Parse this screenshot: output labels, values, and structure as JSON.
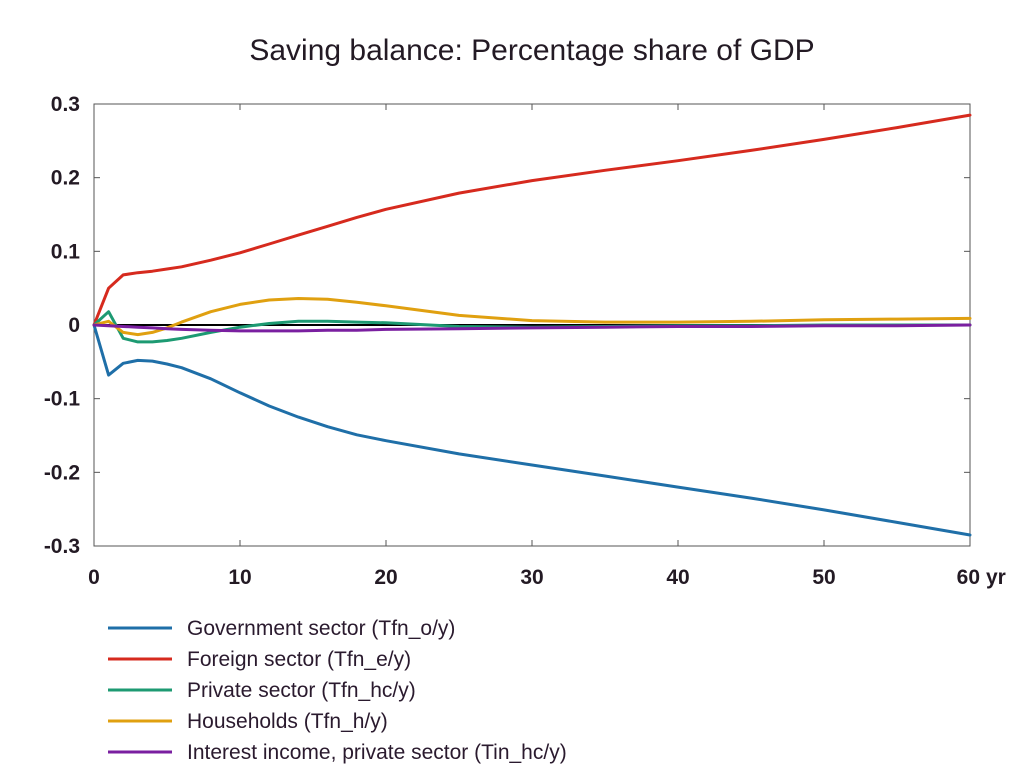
{
  "chart_data": {
    "type": "line",
    "title": "Saving balance: Percentage share of GDP",
    "x_unit_label": "yr",
    "xlim": [
      0,
      60
    ],
    "ylim": [
      -0.3,
      0.3
    ],
    "x_ticks": [
      0,
      10,
      20,
      30,
      40,
      50,
      60
    ],
    "x_tick_labels": [
      "0",
      "10",
      "20",
      "30",
      "40",
      "50",
      "60"
    ],
    "y_ticks": [
      0.3,
      0.2,
      0.1,
      0,
      -0.1,
      -0.2,
      -0.3
    ],
    "y_tick_labels": [
      "0.3",
      "0.2",
      "0.1",
      "0",
      "-0.1",
      "-0.2",
      "-0.3"
    ],
    "grid": false,
    "legend_position": "bottom",
    "series": [
      {
        "name": "Government sector (Tfn_o/y)",
        "color": "#1f6fa8",
        "x": [
          0,
          1,
          2,
          3,
          4,
          5,
          6,
          8,
          10,
          12,
          14,
          16,
          18,
          20,
          25,
          30,
          35,
          40,
          45,
          50,
          55,
          60
        ],
        "y": [
          0,
          -0.068,
          -0.052,
          -0.048,
          -0.049,
          -0.053,
          -0.058,
          -0.073,
          -0.092,
          -0.11,
          -0.125,
          -0.138,
          -0.149,
          -0.157,
          -0.175,
          -0.19,
          -0.205,
          -0.22,
          -0.235,
          -0.251,
          -0.268,
          -0.285
        ]
      },
      {
        "name": "Foreign sector (Tfn_e/y)",
        "color": "#d62a1e",
        "x": [
          0,
          1,
          2,
          3,
          4,
          5,
          6,
          8,
          10,
          12,
          14,
          16,
          18,
          20,
          25,
          30,
          35,
          40,
          45,
          50,
          55,
          60
        ],
        "y": [
          0,
          0.05,
          0.068,
          0.071,
          0.073,
          0.076,
          0.079,
          0.088,
          0.098,
          0.11,
          0.122,
          0.134,
          0.146,
          0.157,
          0.179,
          0.196,
          0.21,
          0.223,
          0.237,
          0.252,
          0.268,
          0.285
        ]
      },
      {
        "name": "Private sector (Tfn_hc/y)",
        "color": "#1d9a72",
        "x": [
          0,
          1,
          2,
          3,
          4,
          5,
          6,
          8,
          10,
          12,
          14,
          16,
          18,
          20,
          25,
          30,
          35,
          40,
          45,
          50,
          55,
          60
        ],
        "y": [
          0,
          0.018,
          -0.018,
          -0.023,
          -0.023,
          -0.021,
          -0.018,
          -0.01,
          -0.003,
          0.002,
          0.005,
          0.005,
          0.004,
          0.003,
          -0.002,
          -0.003,
          -0.002,
          -0.001,
          -0.001,
          0,
          0,
          0
        ]
      },
      {
        "name": "Households (Tfn_h/y)",
        "color": "#e0a010",
        "x": [
          0,
          1,
          2,
          3,
          4,
          5,
          6,
          8,
          10,
          12,
          14,
          16,
          18,
          20,
          25,
          30,
          35,
          40,
          45,
          50,
          55,
          60
        ],
        "y": [
          0,
          0.005,
          -0.01,
          -0.013,
          -0.01,
          -0.004,
          0.004,
          0.018,
          0.028,
          0.034,
          0.036,
          0.035,
          0.031,
          0.026,
          0.013,
          0.006,
          0.004,
          0.004,
          0.005,
          0.007,
          0.008,
          0.009
        ]
      },
      {
        "name": "Interest income, private sector (Tin_hc/y)",
        "color": "#7a1fa0",
        "x": [
          0,
          1,
          2,
          3,
          4,
          5,
          6,
          8,
          10,
          12,
          14,
          16,
          18,
          20,
          25,
          30,
          35,
          40,
          45,
          50,
          55,
          60
        ],
        "y": [
          0,
          -0.001,
          -0.002,
          -0.003,
          -0.004,
          -0.005,
          -0.006,
          -0.007,
          -0.008,
          -0.008,
          -0.008,
          -0.007,
          -0.007,
          -0.006,
          -0.005,
          -0.004,
          -0.003,
          -0.002,
          -0.002,
          -0.001,
          -0.001,
          0
        ]
      }
    ]
  }
}
